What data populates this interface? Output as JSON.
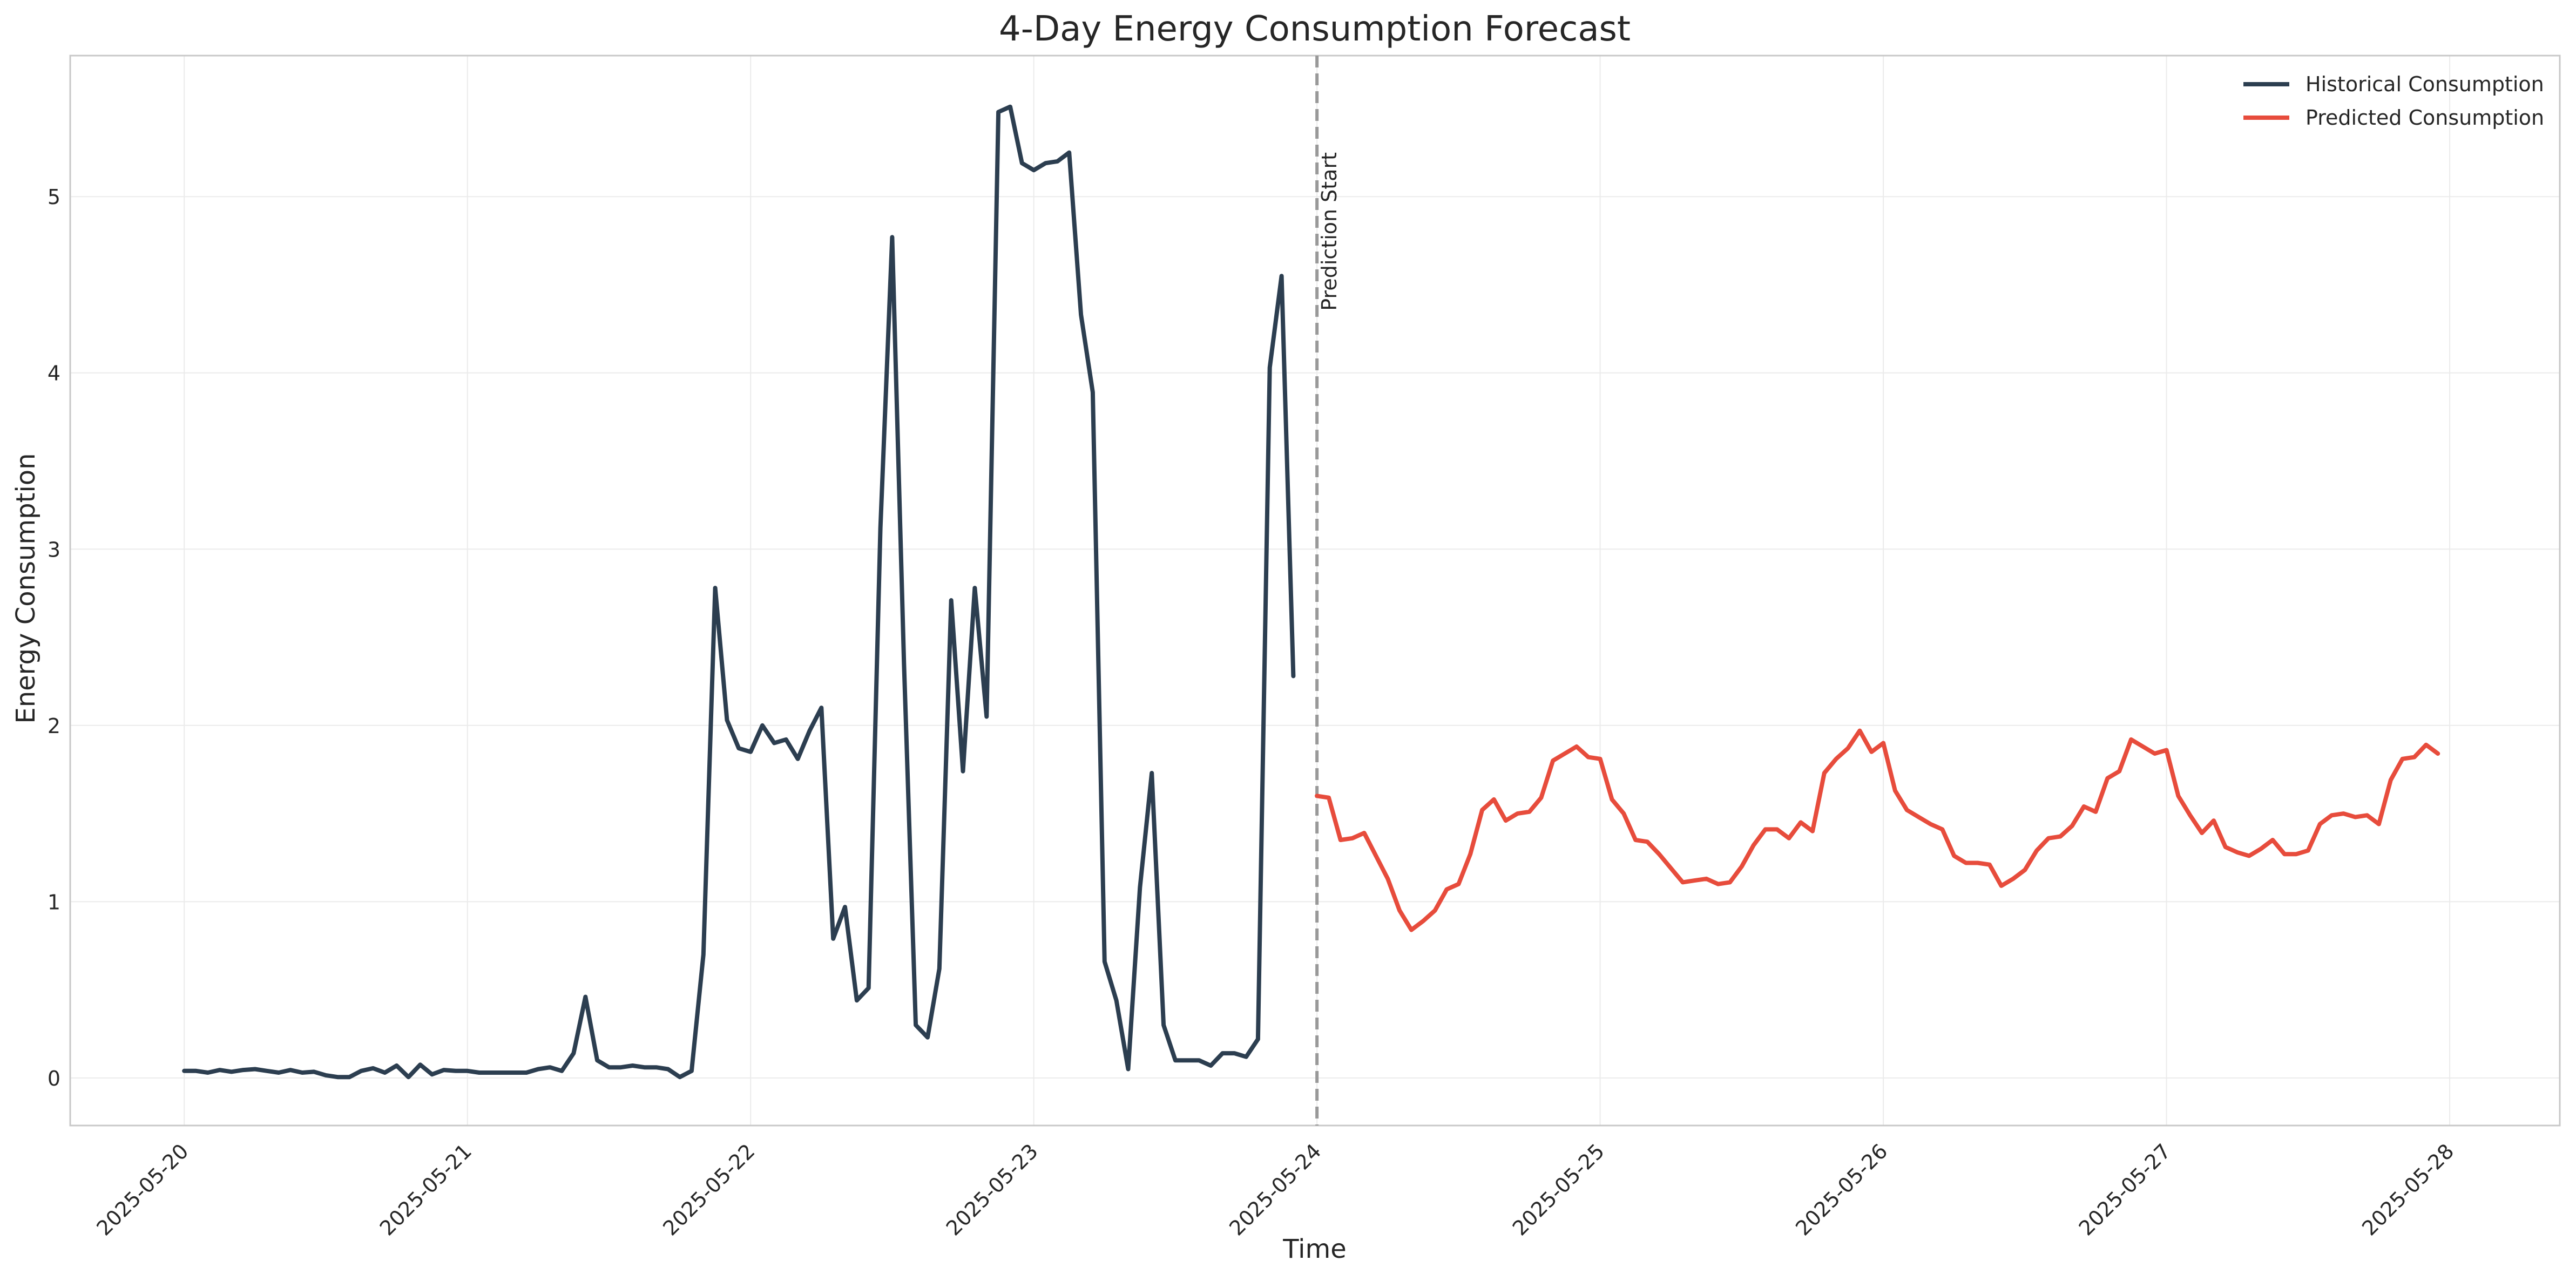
{
  "chart_data": {
    "type": "line",
    "title": "4-Day Energy Consumption Forecast",
    "xlabel": "Time",
    "ylabel": "Energy Consumption",
    "x_ticks": [
      "2025-05-20",
      "2025-05-21",
      "2025-05-22",
      "2025-05-23",
      "2025-05-24",
      "2025-05-25",
      "2025-05-26",
      "2025-05-27",
      "2025-05-28"
    ],
    "y_ticks": [
      0,
      1,
      2,
      3,
      4,
      5
    ],
    "xlim": [
      "2025-05-19 14:20",
      "2025-05-28 09:20"
    ],
    "ylim": [
      -0.27,
      5.8
    ],
    "grid": true,
    "legend_position": "top-right",
    "annotation": {
      "x": "2025-05-24 00:00",
      "label": "Prediction Start",
      "color": "#999999"
    },
    "series": [
      {
        "name": "Historical Consumption",
        "color": "#2c3e50",
        "x_start": "2025-05-20 00:00",
        "x_step_hours": 1,
        "values": [
          0.04,
          0.04,
          0.03,
          0.045,
          0.035,
          0.045,
          0.05,
          0.04,
          0.03,
          0.045,
          0.03,
          0.035,
          0.015,
          0.005,
          0.005,
          0.04,
          0.055,
          0.03,
          0.07,
          0.005,
          0.075,
          0.02,
          0.045,
          0.04,
          0.04,
          0.03,
          0.03,
          0.03,
          0.03,
          0.03,
          0.05,
          0.06,
          0.04,
          0.14,
          0.46,
          0.1,
          0.06,
          0.06,
          0.07,
          0.06,
          0.06,
          0.05,
          0.005,
          0.04,
          0.7,
          2.78,
          2.03,
          1.87,
          1.85,
          2.0,
          1.9,
          1.92,
          1.81,
          1.97,
          2.1,
          0.79,
          0.97,
          0.44,
          0.51,
          3.12,
          4.77,
          2.35,
          0.3,
          0.23,
          0.62,
          2.71,
          1.74,
          2.78,
          2.05,
          5.48,
          5.51,
          5.19,
          5.15,
          5.19,
          5.2,
          5.25,
          4.33,
          3.89,
          0.66,
          0.44,
          0.05,
          1.08,
          1.73,
          0.3,
          0.1,
          0.1,
          0.1,
          0.07,
          0.14,
          0.14,
          0.12,
          0.22,
          4.03,
          4.55,
          2.28
        ]
      },
      {
        "name": "Predicted Consumption",
        "color": "#e74c3c",
        "x_start": "2025-05-24 00:00",
        "x_step_hours": 1,
        "values": [
          1.6,
          1.59,
          1.35,
          1.36,
          1.39,
          1.26,
          1.13,
          0.95,
          0.84,
          0.89,
          0.95,
          1.07,
          1.1,
          1.27,
          1.52,
          1.58,
          1.46,
          1.5,
          1.51,
          1.59,
          1.8,
          1.84,
          1.88,
          1.82,
          1.81,
          1.58,
          1.5,
          1.35,
          1.34,
          1.27,
          1.19,
          1.11,
          1.12,
          1.13,
          1.1,
          1.11,
          1.2,
          1.32,
          1.41,
          1.41,
          1.36,
          1.45,
          1.4,
          1.73,
          1.81,
          1.87,
          1.97,
          1.85,
          1.9,
          1.63,
          1.52,
          1.48,
          1.44,
          1.41,
          1.26,
          1.22,
          1.22,
          1.21,
          1.09,
          1.13,
          1.18,
          1.29,
          1.36,
          1.37,
          1.43,
          1.54,
          1.51,
          1.7,
          1.74,
          1.92,
          1.88,
          1.84,
          1.86,
          1.6,
          1.49,
          1.39,
          1.46,
          1.31,
          1.28,
          1.26,
          1.3,
          1.35,
          1.27,
          1.27,
          1.29,
          1.44,
          1.49,
          1.5,
          1.48,
          1.49,
          1.44,
          1.69,
          1.81,
          1.82,
          1.89,
          1.84
        ]
      }
    ]
  }
}
